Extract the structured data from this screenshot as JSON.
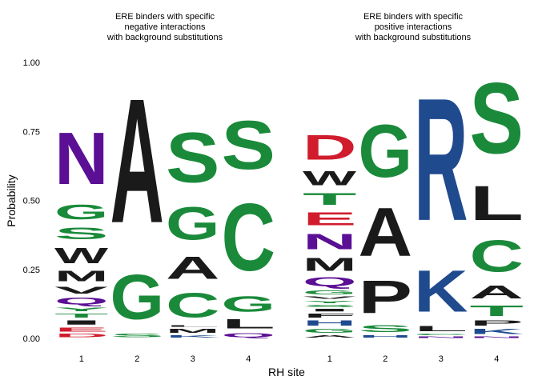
{
  "chart_data": {
    "type": "sequence-logo",
    "ylabel": "Probability",
    "xlabel": "RH site",
    "ylim": [
      0,
      1
    ],
    "yticks": [
      "0.00",
      "0.25",
      "0.50",
      "0.75",
      "1.00"
    ],
    "xticks": [
      "1",
      "2",
      "3",
      "4"
    ],
    "colors": {
      "D": "#d01c2c",
      "E": "#d01c2c",
      "N": "#5b0f94",
      "Q": "#5b0f94",
      "G": "#1a8a3a",
      "S": "#1a8a3a",
      "T": "#1a8a3a",
      "Y": "#1a8a3a",
      "C": "#1a8a3a",
      "R": "#1f4a8e",
      "K": "#1f4a8e",
      "H": "#1f4a8e",
      "A": "#1a1a1a",
      "W": "#1a1a1a",
      "M": "#1a1a1a",
      "V": "#1a1a1a",
      "P": "#1a1a1a",
      "L": "#1a1a1a",
      "I": "#1a1a1a",
      "F": "#1a1a1a"
    },
    "panels": [
      {
        "title": [
          "ERE binders with specific",
          "negative interactions",
          "with background substitutions"
        ],
        "sites": [
          [
            {
              "letter": "D",
              "value": 0.02
            },
            {
              "letter": "E",
              "value": 0.025
            },
            {
              "letter": "I",
              "value": 0.025
            },
            {
              "letter": "T",
              "value": 0.025
            },
            {
              "letter": "Y",
              "value": 0.02
            },
            {
              "letter": "Q",
              "value": 0.04
            },
            {
              "letter": "V",
              "value": 0.04
            },
            {
              "letter": "M",
              "value": 0.06
            },
            {
              "letter": "W",
              "value": 0.09
            },
            {
              "letter": "S",
              "value": 0.07
            },
            {
              "letter": "G",
              "value": 0.085
            },
            {
              "letter": "N",
              "value": 0.3
            }
          ],
          [
            {
              "letter": "S",
              "value": 0.02
            },
            {
              "letter": "G",
              "value": 0.26
            },
            {
              "letter": "A",
              "value": 0.72
            }
          ],
          [
            {
              "letter": "K",
              "value": 0.015
            },
            {
              "letter": "M",
              "value": 0.025
            },
            {
              "letter": "L",
              "value": 0.01
            },
            {
              "letter": "C",
              "value": 0.14
            },
            {
              "letter": "A",
              "value": 0.13
            },
            {
              "letter": "G",
              "value": 0.19
            },
            {
              "letter": "S",
              "value": 0.29
            }
          ],
          [
            {
              "letter": "Q",
              "value": 0.025
            },
            {
              "letter": "L",
              "value": 0.055
            },
            {
              "letter": "G",
              "value": 0.09
            },
            {
              "letter": "C",
              "value": 0.39
            },
            {
              "letter": "S",
              "value": 0.28
            }
          ]
        ]
      },
      {
        "title": [
          "ERE binders with specific",
          "positive interactions",
          "with background substitutions"
        ],
        "sites": [
          [
            {
              "letter": "A",
              "value": 0.015
            },
            {
              "letter": "G",
              "value": 0.025
            },
            {
              "letter": "H",
              "value": 0.03
            },
            {
              "letter": "F",
              "value": 0.025
            },
            {
              "letter": "I",
              "value": 0.015
            },
            {
              "letter": "S",
              "value": 0.015
            },
            {
              "letter": "Y",
              "value": 0.015
            },
            {
              "letter": "V",
              "value": 0.015
            },
            {
              "letter": "G",
              "value": 0.025
            },
            {
              "letter": "Q",
              "value": 0.05
            },
            {
              "letter": "M",
              "value": 0.075
            },
            {
              "letter": "N",
              "value": 0.09
            },
            {
              "letter": "E",
              "value": 0.075
            },
            {
              "letter": "T",
              "value": 0.07
            },
            {
              "letter": "W",
              "value": 0.08
            },
            {
              "letter": "D",
              "value": 0.145
            }
          ],
          [
            {
              "letter": "H",
              "value": 0.015
            },
            {
              "letter": "S",
              "value": 0.04
            },
            {
              "letter": "P",
              "value": 0.19
            },
            {
              "letter": "A",
              "value": 0.28
            },
            {
              "letter": "G",
              "value": 0.305
            }
          ],
          [
            {
              "letter": "N",
              "value": 0.01
            },
            {
              "letter": "C",
              "value": 0.01
            },
            {
              "letter": "L",
              "value": 0.03
            },
            {
              "letter": "K",
              "value": 0.24
            },
            {
              "letter": "R",
              "value": 0.71
            }
          ],
          [
            {
              "letter": "N",
              "value": 0.01
            },
            {
              "letter": "K",
              "value": 0.03
            },
            {
              "letter": "P",
              "value": 0.03
            },
            {
              "letter": "T",
              "value": 0.06
            },
            {
              "letter": "A",
              "value": 0.075
            },
            {
              "letter": "C",
              "value": 0.185
            },
            {
              "letter": "L",
              "value": 0.2
            },
            {
              "letter": "S",
              "value": 0.41
            }
          ]
        ]
      }
    ]
  }
}
